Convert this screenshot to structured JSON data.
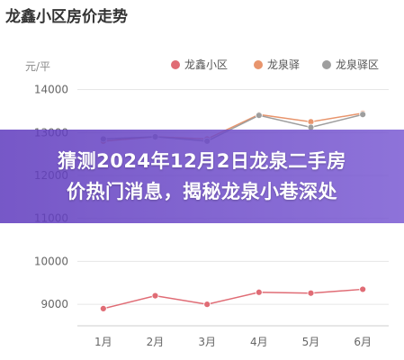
{
  "chart_data": {
    "type": "line",
    "title": "龙鑫小区房价走势",
    "ylabel": "元/平",
    "categories": [
      "1月",
      "2月",
      "3月",
      "4月",
      "5月",
      "6月"
    ],
    "ylim": [
      8500,
      14200
    ],
    "yticks": [
      9000,
      10000,
      11000,
      12000,
      13000,
      14000
    ],
    "grid": true,
    "legend_position": "top-right",
    "series": [
      {
        "name": "龙鑫小区",
        "color": "#e06c75",
        "values": [
          8900,
          9200,
          9000,
          9280,
          9260,
          9350
        ]
      },
      {
        "name": "龙泉驿",
        "color": "#e8956d",
        "values": [
          12800,
          12900,
          12850,
          13420,
          13250,
          13450
        ]
      },
      {
        "name": "龙泉驿区",
        "color": "#9e9e9e",
        "values": [
          12850,
          12900,
          12800,
          13400,
          13120,
          13420
        ]
      }
    ]
  },
  "banner": {
    "line1": "猜测2024年12月2日龙泉二手房",
    "line2": "价热门消息，揭秘龙泉小巷深处"
  }
}
